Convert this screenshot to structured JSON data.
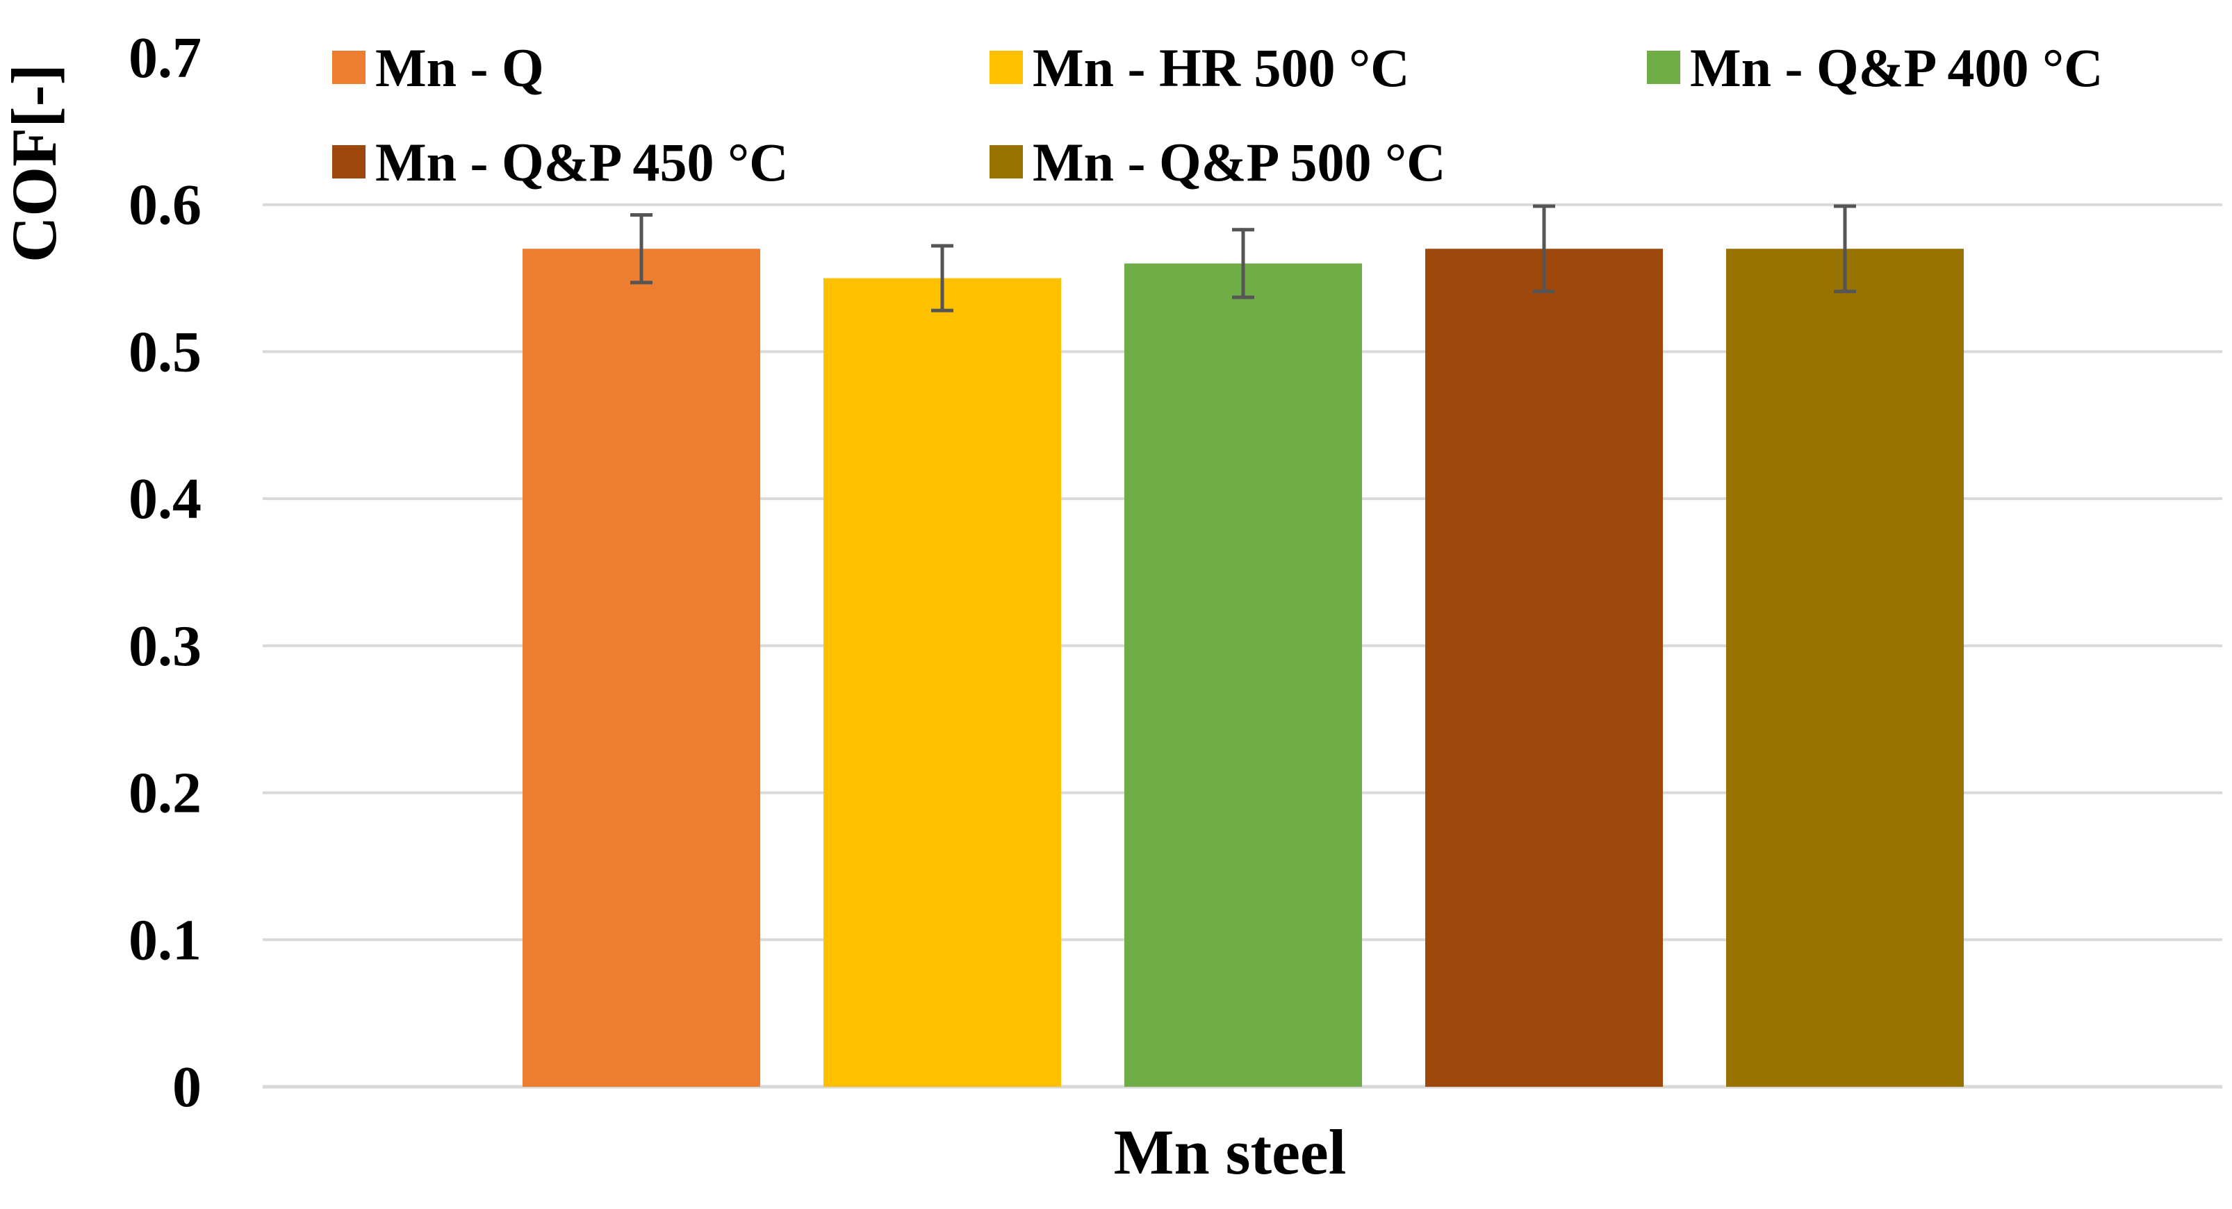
{
  "chart_data": {
    "type": "bar",
    "title": "",
    "xlabel": "Mn steel",
    "ylabel": "COF[-]",
    "ylim": [
      0,
      0.7
    ],
    "yticks": [
      0,
      0.1,
      0.2,
      0.3,
      0.4,
      0.5,
      0.6,
      0.7
    ],
    "ytick_labels": [
      "0",
      "0.1",
      "0.2",
      "0.3",
      "0.4",
      "0.5",
      "0.6",
      "0.7"
    ],
    "grid": true,
    "legend_position": "top",
    "categories": [
      "Mn steel"
    ],
    "series": [
      {
        "name": "Mn - Q",
        "values": [
          0.57
        ],
        "error": [
          0.023
        ],
        "color": "#ED7D31"
      },
      {
        "name": "Mn - HR 500 °C",
        "values": [
          0.55
        ],
        "error": [
          0.022
        ],
        "color": "#FFC000"
      },
      {
        "name": "Mn - Q&P 400 °C",
        "values": [
          0.56
        ],
        "error": [
          0.023
        ],
        "color": "#70AD47"
      },
      {
        "name": "Mn - Q&P 450 °C",
        "values": [
          0.57
        ],
        "error": [
          0.029
        ],
        "color": "#9E480E"
      },
      {
        "name": "Mn - Q&P 500 °C",
        "values": [
          0.57
        ],
        "error": [
          0.029
        ],
        "color": "#997300"
      }
    ],
    "error_bar_color": "#555555",
    "gridline_color": "#D9D9D9"
  }
}
